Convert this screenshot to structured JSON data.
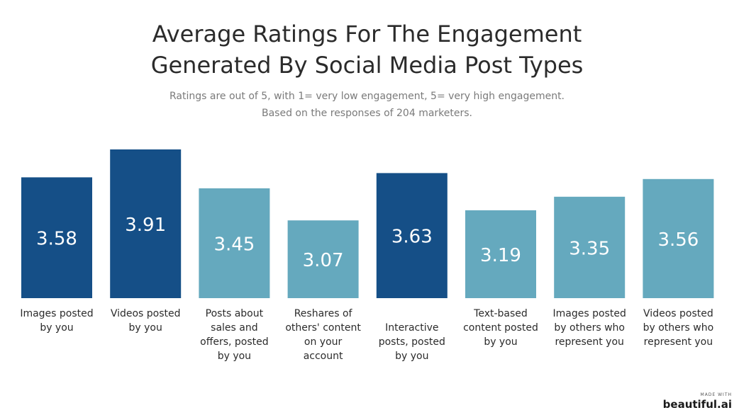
{
  "chart_data": {
    "type": "bar",
    "title_lines": [
      "Average Ratings For The Engagement",
      "Generated By Social Media Post Types"
    ],
    "subtitle_lines": [
      "Ratings are out of 5, with 1= very low engagement, 5= very high engagement.",
      "Based on the responses of 204 marketers."
    ],
    "categories": [
      "Images posted by you",
      "Videos posted by you",
      "Posts about sales and offers, posted by you",
      "Reshares of others' content on your account",
      "Interactive posts, posted by you",
      "Text-based content posted by you",
      "Images posted by others who represent you",
      "Videos posted by others who represent you"
    ],
    "values": [
      3.58,
      3.91,
      3.45,
      3.07,
      3.63,
      3.19,
      3.35,
      3.56
    ],
    "value_labels": [
      "3.58",
      "3.91",
      "3.45",
      "3.07",
      "3.63",
      "3.19",
      "3.35",
      "3.56"
    ],
    "bar_colors": [
      "#154f87",
      "#154f87",
      "#65a9be",
      "#65a9be",
      "#154f87",
      "#65a9be",
      "#65a9be",
      "#65a9be"
    ],
    "ylim": [
      2.15,
      3.91
    ],
    "grid": false,
    "legend": "none"
  },
  "colors": {
    "dark_bar": "#154f87",
    "light_bar": "#65a9be",
    "value_text": "#ffffff"
  },
  "watermark": {
    "made_with": "MADE WITH",
    "brand": "beautiful.ai"
  }
}
